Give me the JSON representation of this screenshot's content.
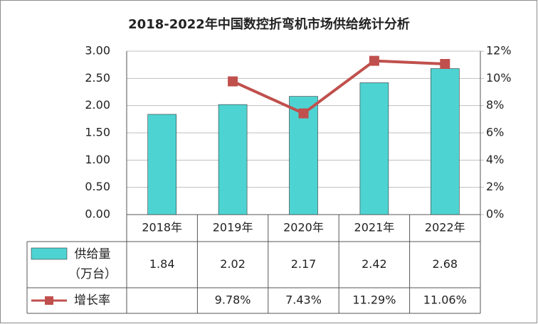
{
  "chart_data": {
    "type": "bar-line",
    "title": "2018-2022年中国数控折弯机市场供给统计分析",
    "categories": [
      "2018年",
      "2019年",
      "2020年",
      "2021年",
      "2022年"
    ],
    "series": [
      {
        "name": "供给量（万台）",
        "type": "bar",
        "color": "#4dd4d2",
        "values": [
          1.84,
          2.02,
          2.17,
          2.42,
          2.68
        ]
      },
      {
        "name": "增长率",
        "type": "line",
        "color": "#c0504d",
        "axis": "y2",
        "values": [
          null,
          9.78,
          7.43,
          11.29,
          11.06
        ],
        "value_labels": [
          null,
          "9.78%",
          "7.43%",
          "11.29%",
          "11.06%"
        ]
      }
    ],
    "ylim": [
      0,
      3
    ],
    "yticks": [
      {
        "value": 0,
        "label": "0.00"
      },
      {
        "value": 0.5,
        "label": "0.50"
      },
      {
        "value": 1,
        "label": "1.00"
      },
      {
        "value": 1.5,
        "label": "1.50"
      },
      {
        "value": 2,
        "label": "2.00"
      },
      {
        "value": 2.5,
        "label": "2.50"
      },
      {
        "value": 3,
        "label": "3.00"
      }
    ],
    "y2lim": [
      0,
      12
    ],
    "y2ticks": [
      {
        "value": 0,
        "label": "0%"
      },
      {
        "value": 2,
        "label": "2%"
      },
      {
        "value": 4,
        "label": "4%"
      },
      {
        "value": 6,
        "label": "6%"
      },
      {
        "value": 8,
        "label": "8%"
      },
      {
        "value": 10,
        "label": "10%"
      },
      {
        "value": 12,
        "label": "12%"
      }
    ],
    "grid": true
  }
}
